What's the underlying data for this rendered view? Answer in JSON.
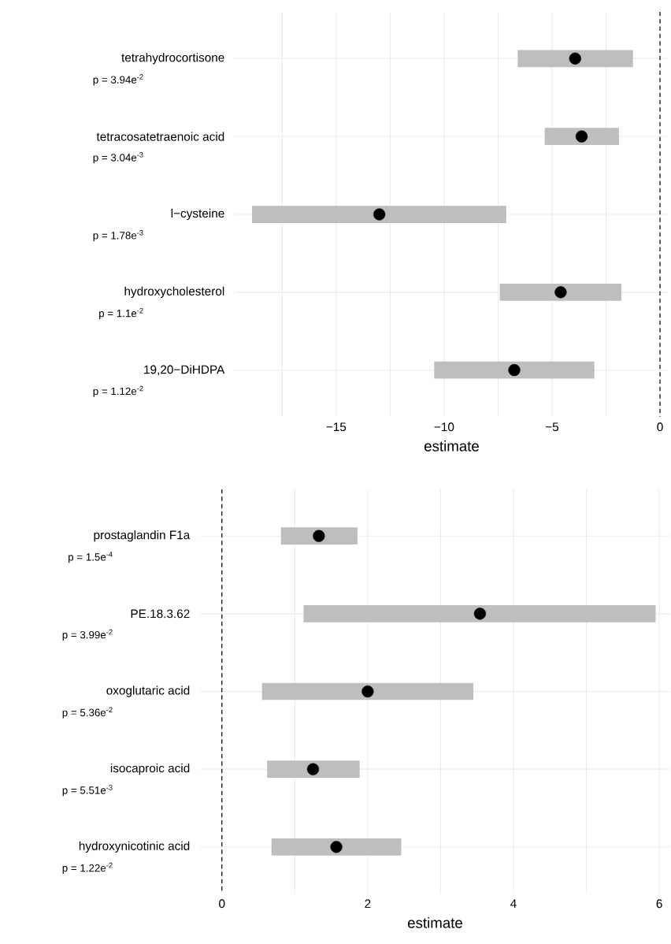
{
  "chart_data": [
    {
      "type": "scatter",
      "orientation": "horizontal",
      "xlabel": "estimate",
      "categories": [
        "tetrahydrocortisone",
        "tetracosatetraenoic acid",
        "l−cysteine",
        "hydroxycholesterol",
        "19,20−DiHDPA"
      ],
      "series": [
        {
          "type": "bar",
          "color": "#bebebe",
          "base": [
            -6.59,
            -5.34,
            -18.9,
            -7.42,
            -10.46
          ],
          "values": [
            5.34,
            3.44,
            11.78,
            5.63,
            7.42
          ]
        },
        {
          "color": "#000000",
          "values": [
            -3.93,
            -3.63,
            -13.0,
            -4.6,
            -6.75
          ]
        }
      ],
      "xlim": [
        -19.7,
        0.4
      ],
      "xticks": [
        {
          "value": -15,
          "label": "−15"
        },
        {
          "value": -10,
          "label": "−10"
        },
        {
          "value": -5,
          "label": "−5"
        },
        0
      ],
      "ref_lines": [
        {
          "axis": "x",
          "value": 0,
          "line_style": "dashed"
        }
      ],
      "annotations": [
        "p = 3.94e$^{-2}$",
        "p = 3.04e$^{-3}$",
        "p = 1.78e$^{-3}$",
        "p = 1.1e$^{-2}$",
        "p = 1.12e$^{-2}$"
      ],
      "grid": true
    },
    {
      "type": "scatter",
      "orientation": "horizontal",
      "xlabel": "estimate",
      "categories": [
        "prostaglandin F1a",
        "PE.18.3.62",
        "oxoglutaric acid",
        "isocaproic acid",
        "hydroxynicotinic acid"
      ],
      "series": [
        {
          "type": "bar",
          "color": "#bebebe",
          "base": [
            0.81,
            1.12,
            0.55,
            0.62,
            0.68
          ],
          "values": [
            1.05,
            4.83,
            2.9,
            1.27,
            1.78
          ]
        },
        {
          "color": "#000000",
          "values": [
            1.33,
            3.54,
            2.0,
            1.25,
            1.57
          ]
        }
      ],
      "xlim": [
        -0.3,
        6.15
      ],
      "xticks": [
        0,
        2,
        4,
        6
      ],
      "ref_lines": [
        {
          "axis": "x",
          "value": 0,
          "line_style": "dashed"
        }
      ],
      "annotations": [
        "p = 1.5e$^{-4}$",
        "p = 3.99e$^{-2}$",
        "p = 5.36e$^{-2}$",
        "p = 5.51e$^{-3}$",
        "p = 1.22e$^{-2}$"
      ],
      "grid": true
    }
  ]
}
